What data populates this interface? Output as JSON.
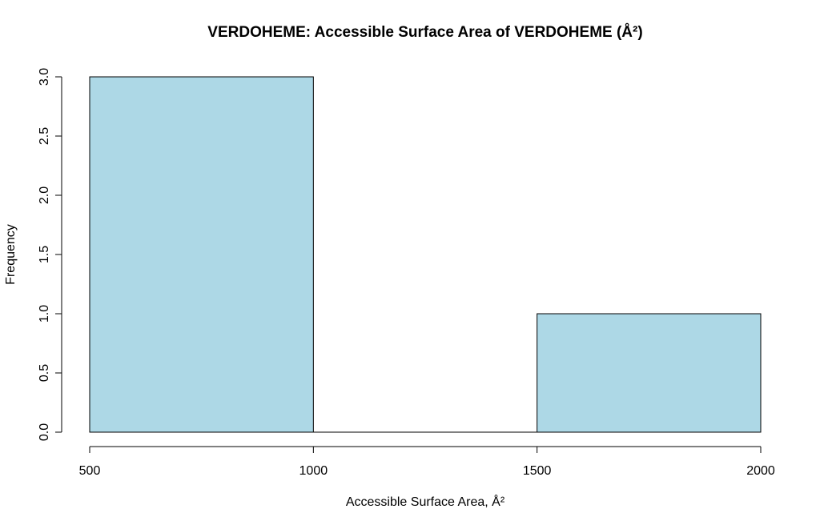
{
  "chart_data": {
    "type": "bar",
    "title": "VERDOHEME: Accessible Surface Area of VERDOHEME (Å²)",
    "xlabel": "Accessible Surface Area, Å²",
    "ylabel": "Frequency",
    "bins": [
      {
        "start": 500,
        "end": 1000,
        "count": 3
      },
      {
        "start": 1000,
        "end": 1500,
        "count": 0
      },
      {
        "start": 1500,
        "end": 2000,
        "count": 1
      }
    ],
    "xlim": [
      500,
      2000
    ],
    "ylim": [
      0,
      3
    ],
    "x_ticks": [
      500,
      1000,
      1500,
      2000
    ],
    "x_tick_labels": [
      "500",
      "1000",
      "1500",
      "2000"
    ],
    "y_ticks": [
      0,
      0.5,
      1,
      1.5,
      2,
      2.5,
      3
    ],
    "y_tick_labels": [
      "0.0",
      "0.5",
      "1.0",
      "1.5",
      "2.0",
      "2.5",
      "3.0"
    ],
    "bar_color": "#add8e6",
    "grid": false,
    "legend": "none"
  }
}
